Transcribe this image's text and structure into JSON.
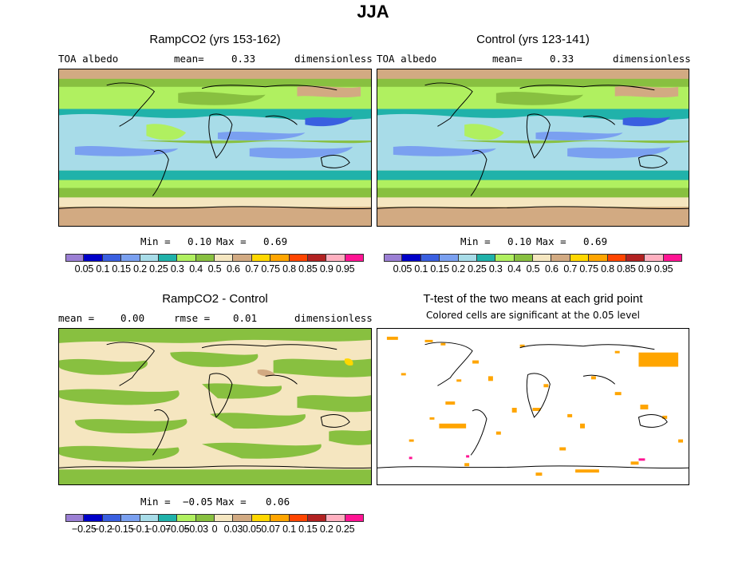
{
  "title": "JJA",
  "panels": {
    "top_left": {
      "title": "RampCO2 (yrs 153-162)",
      "variable": "TOA albedo",
      "mean_label": "mean=",
      "mean_value": "0.33",
      "units": "dimensionless",
      "min_label": "Min =",
      "min_value": "0.10",
      "max_label": "Max =",
      "max_value": "0.69"
    },
    "top_right": {
      "title": "Control (yrs 123-141)",
      "variable": "TOA albedo",
      "mean_label": "mean=",
      "mean_value": "0.33",
      "units": "dimensionless",
      "min_label": "Min =",
      "min_value": "0.10",
      "max_label": "Max =",
      "max_value": "0.69"
    },
    "bottom_left": {
      "title": "RampCO2 - Control",
      "mean_label": "mean =",
      "mean_value": "0.00",
      "rmse_label": "rmse =",
      "rmse_value": "0.01",
      "units": "dimensionless",
      "min_label": "Min =",
      "min_value": "−0.05",
      "max_label": "Max =",
      "max_value": "0.06"
    },
    "bottom_right": {
      "title": "T-test of the two means at each grid point",
      "subtitle": "Colored cells are significant at the 0.05 level",
      "significant_color": "#ffa500"
    }
  },
  "colorbar_abs": {
    "colors": [
      "#9b7fd4",
      "#0000c8",
      "#3a5fe0",
      "#7aa0f0",
      "#a8dce8",
      "#20b2aa",
      "#b0f060",
      "#88c040",
      "#f5e6c0",
      "#d2aa82",
      "#ffd700",
      "#ffa500",
      "#ff4500",
      "#b22222",
      "#ffb0c0",
      "#ff1493"
    ],
    "labels": [
      "0.05",
      "0.1",
      "0.15",
      "0.2",
      "0.25",
      "0.3",
      "0.4",
      "0.5",
      "0.6",
      "0.7",
      "0.75",
      "0.8",
      "0.85",
      "0.9",
      "0.95"
    ]
  },
  "colorbar_diff": {
    "colors": [
      "#9b7fd4",
      "#0000c8",
      "#3a5fe0",
      "#7aa0f0",
      "#a8dce8",
      "#20b2aa",
      "#b0f060",
      "#88c040",
      "#f5e6c0",
      "#d2aa82",
      "#ffd700",
      "#ffa500",
      "#ff4500",
      "#b22222",
      "#ffb0c0",
      "#ff1493"
    ],
    "labels": [
      "−0.25",
      "−0.2",
      "−0.15",
      "−0.1",
      "−0.07",
      "−0.05",
      "−0.03",
      "0",
      "0.03",
      "0.05",
      "0.07",
      "0.1",
      "0.15",
      "0.2",
      "0.25"
    ]
  }
}
